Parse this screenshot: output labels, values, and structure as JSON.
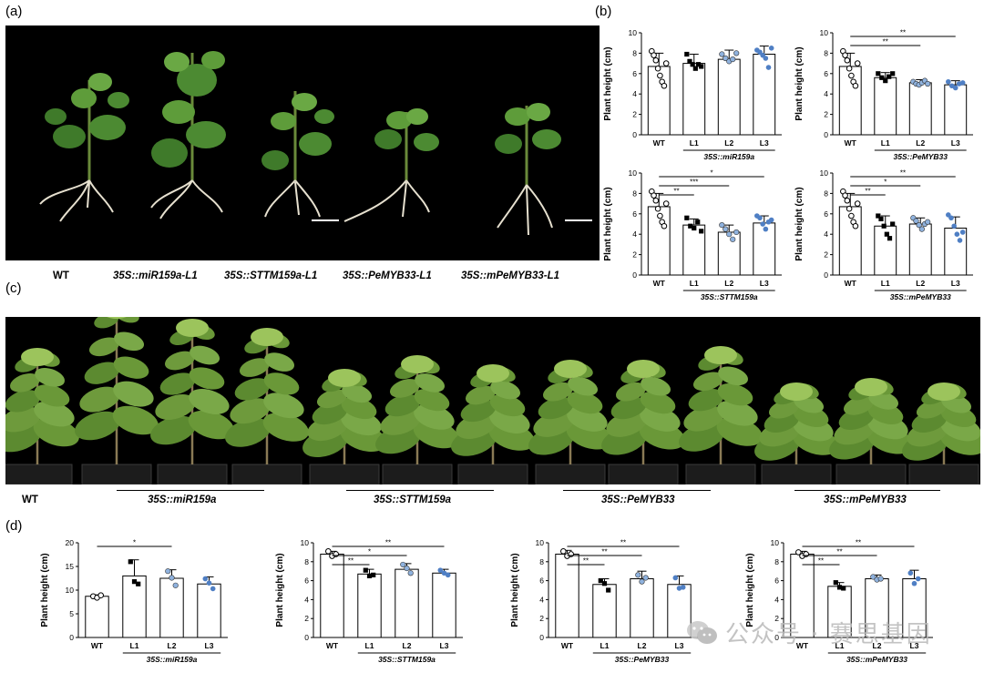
{
  "panels": {
    "a": "(a)",
    "b": "(b)",
    "c": "(c)",
    "d": "(d)"
  },
  "panel_a": {
    "labels": [
      "WT",
      "35S::miR159a-L1",
      "35S::STTM159a-L1",
      "35S::PeMYB33-L1",
      "35S::mPeMYB33-L1"
    ]
  },
  "panel_c": {
    "labels": [
      "WT",
      "35S::miR159a",
      "35S::STTM159a",
      "35S::PeMYB33",
      "35S::mPeMYB33"
    ]
  },
  "watermark": {
    "text": "公众号 · 赛思基因"
  },
  "colors": {
    "accent_blue": "#4f7fc4",
    "accent_lightblue": "#8fb2de",
    "background_photo": "#000000"
  },
  "chart_data": [
    {
      "id": "b1",
      "type": "bar",
      "categories": [
        "WT",
        "L1",
        "L2",
        "L3"
      ],
      "values": [
        6.7,
        7.0,
        7.4,
        7.9
      ],
      "errors": [
        1.3,
        0.9,
        0.9,
        0.8
      ],
      "points": [
        [
          8.2,
          7.8,
          7.3,
          6.5,
          5.8,
          5.2,
          4.8,
          7.0
        ],
        [
          7.9,
          7.2,
          6.9,
          6.5,
          6.9,
          6.7
        ],
        [
          7.9,
          7.5,
          7.2,
          7.4,
          8.0
        ],
        [
          8.3,
          8.1,
          7.8,
          7.5,
          6.6,
          8.5
        ]
      ],
      "marker": [
        "open-circle",
        "filled-square",
        "lightblue-circle",
        "blue-circle"
      ],
      "ylabel": "Plant height (cm)",
      "ylim": [
        0,
        10
      ],
      "yticks": [
        0,
        2,
        4,
        6,
        8,
        10
      ],
      "group_label": "35S::miR159a",
      "significance": []
    },
    {
      "id": "b2",
      "type": "bar",
      "categories": [
        "WT",
        "L1",
        "L2",
        "L3"
      ],
      "values": [
        6.7,
        5.6,
        5.1,
        4.9
      ],
      "errors": [
        1.3,
        0.5,
        0.3,
        0.4
      ],
      "points": [
        [
          8.2,
          7.8,
          7.3,
          6.5,
          5.8,
          5.2,
          4.8,
          7.0
        ],
        [
          6.0,
          5.6,
          5.3,
          5.7,
          6.0
        ],
        [
          5.2,
          5.0,
          4.9,
          5.1,
          5.3,
          5.0
        ],
        [
          5.2,
          4.8,
          4.6,
          5.0,
          5.1
        ]
      ],
      "marker": [
        "open-circle",
        "filled-square",
        "lightblue-circle",
        "blue-circle"
      ],
      "ylabel": "Plant height (cm)",
      "ylim": [
        0,
        10
      ],
      "yticks": [
        0,
        2,
        4,
        6,
        8,
        10
      ],
      "group_label": "35S::PeMYB33",
      "significance": [
        {
          "to": 3,
          "label": "**"
        },
        {
          "to": 2,
          "label": "**"
        }
      ]
    },
    {
      "id": "b3",
      "type": "bar",
      "categories": [
        "WT",
        "L1",
        "L2",
        "L3"
      ],
      "values": [
        6.7,
        4.9,
        4.2,
        5.1
      ],
      "errors": [
        1.3,
        0.6,
        0.7,
        0.7
      ],
      "points": [
        [
          8.2,
          7.8,
          7.3,
          6.5,
          5.8,
          5.2,
          4.8,
          7.0
        ],
        [
          5.6,
          4.8,
          4.6,
          5.2,
          4.3
        ],
        [
          4.9,
          4.5,
          4.0,
          3.5,
          4.2
        ],
        [
          5.8,
          5.6,
          5.0,
          4.5,
          5.2,
          5.4
        ]
      ],
      "marker": [
        "open-circle",
        "filled-square",
        "lightblue-circle",
        "blue-circle"
      ],
      "ylabel": "Plant height (cm)",
      "ylim": [
        0,
        10
      ],
      "yticks": [
        0,
        2,
        4,
        6,
        8,
        10
      ],
      "group_label": "35S::STTM159a",
      "significance": [
        {
          "to": 3,
          "label": "*"
        },
        {
          "to": 2,
          "label": "***"
        },
        {
          "to": 1,
          "label": "**"
        }
      ]
    },
    {
      "id": "b4",
      "type": "bar",
      "categories": [
        "WT",
        "L1",
        "L2",
        "L3"
      ],
      "values": [
        6.7,
        4.8,
        5.0,
        4.6
      ],
      "errors": [
        1.3,
        1.0,
        0.6,
        1.1
      ],
      "points": [
        [
          8.2,
          7.8,
          7.3,
          6.5,
          5.8,
          5.2,
          4.8,
          7.0
        ],
        [
          5.8,
          5.5,
          4.8,
          4.0,
          3.6,
          5.0
        ],
        [
          5.6,
          5.3,
          4.9,
          4.5,
          5.0,
          5.2
        ],
        [
          5.9,
          5.6,
          4.8,
          4.0,
          3.4,
          4.2
        ]
      ],
      "marker": [
        "open-circle",
        "filled-square",
        "lightblue-circle",
        "blue-circle"
      ],
      "ylabel": "Plant height (cm)",
      "ylim": [
        0,
        10
      ],
      "yticks": [
        0,
        2,
        4,
        6,
        8,
        10
      ],
      "group_label": "35S::mPeMYB33",
      "significance": [
        {
          "to": 3,
          "label": "**"
        },
        {
          "to": 2,
          "label": "*"
        },
        {
          "to": 1,
          "label": "**"
        }
      ]
    },
    {
      "id": "d1",
      "type": "bar",
      "categories": [
        "WT",
        "L1",
        "L2",
        "L3"
      ],
      "values": [
        8.7,
        13.0,
        12.5,
        11.3
      ],
      "errors": [
        0.3,
        3.4,
        1.8,
        1.5
      ],
      "points": [
        [
          8.7,
          8.4,
          8.9
        ],
        [
          16.0,
          11.8,
          11.3
        ],
        [
          14.0,
          12.6,
          11.0
        ],
        [
          12.4,
          11.5,
          10.3
        ]
      ],
      "marker": [
        "open-circle",
        "filled-square",
        "lightblue-circle",
        "blue-circle"
      ],
      "ylabel": "Plant height (cm)",
      "ylim": [
        0,
        20
      ],
      "yticks": [
        0,
        5,
        10,
        15,
        20
      ],
      "group_label": "35S::miR159a",
      "significance": [
        {
          "to": 2,
          "label": "*"
        }
      ]
    },
    {
      "id": "d2",
      "type": "bar",
      "categories": [
        "WT",
        "L1",
        "L2",
        "L3"
      ],
      "values": [
        8.8,
        6.7,
        7.2,
        6.8
      ],
      "errors": [
        0.3,
        0.5,
        0.6,
        0.4
      ],
      "points": [
        [
          9.1,
          8.6,
          8.8
        ],
        [
          7.1,
          6.5,
          6.6
        ],
        [
          7.7,
          7.3,
          6.8
        ],
        [
          7.1,
          6.8,
          6.6
        ]
      ],
      "marker": [
        "open-circle",
        "filled-square",
        "lightblue-circle",
        "blue-circle"
      ],
      "ylabel": "Plant height (cm)",
      "ylim": [
        0,
        10
      ],
      "yticks": [
        0,
        2,
        4,
        6,
        8,
        10
      ],
      "group_label": "35S::STTM159a",
      "significance": [
        {
          "to": 3,
          "label": "**"
        },
        {
          "to": 2,
          "label": "*"
        },
        {
          "to": 1,
          "label": "**"
        }
      ]
    },
    {
      "id": "d3",
      "type": "bar",
      "categories": [
        "WT",
        "L1",
        "L2",
        "L3"
      ],
      "values": [
        8.8,
        5.6,
        6.2,
        5.6
      ],
      "errors": [
        0.4,
        0.6,
        0.8,
        0.9
      ],
      "points": [
        [
          9.1,
          8.6,
          8.8
        ],
        [
          6.0,
          5.7,
          5.0
        ],
        [
          6.6,
          5.9,
          6.3
        ],
        [
          6.3,
          5.2,
          5.3
        ]
      ],
      "marker": [
        "open-circle",
        "filled-square",
        "lightblue-circle",
        "blue-circle"
      ],
      "ylabel": "Plant height (cm)",
      "ylim": [
        0,
        10
      ],
      "yticks": [
        0,
        2,
        4,
        6,
        8,
        10
      ],
      "group_label": "35S::PeMYB33",
      "significance": [
        {
          "to": 3,
          "label": "**"
        },
        {
          "to": 2,
          "label": "**"
        },
        {
          "to": 1,
          "label": "**"
        }
      ]
    },
    {
      "id": "d4",
      "type": "bar",
      "categories": [
        "WT",
        "L1",
        "L2",
        "L3"
      ],
      "values": [
        8.8,
        5.4,
        6.2,
        6.2
      ],
      "errors": [
        0.3,
        0.4,
        0.4,
        0.9
      ],
      "points": [
        [
          9.0,
          8.6,
          8.8
        ],
        [
          5.8,
          5.3,
          5.2
        ],
        [
          6.4,
          6.1,
          6.2
        ],
        [
          6.8,
          5.7,
          6.2
        ]
      ],
      "marker": [
        "open-circle",
        "filled-square",
        "lightblue-circle",
        "blue-circle"
      ],
      "ylabel": "Plant height (cm)",
      "ylim": [
        0,
        10
      ],
      "yticks": [
        0,
        2,
        4,
        6,
        8,
        10
      ],
      "group_label": "35S::mPeMYB33",
      "significance": [
        {
          "to": 3,
          "label": "**"
        },
        {
          "to": 2,
          "label": "**"
        },
        {
          "to": 1,
          "label": "**"
        }
      ]
    }
  ]
}
